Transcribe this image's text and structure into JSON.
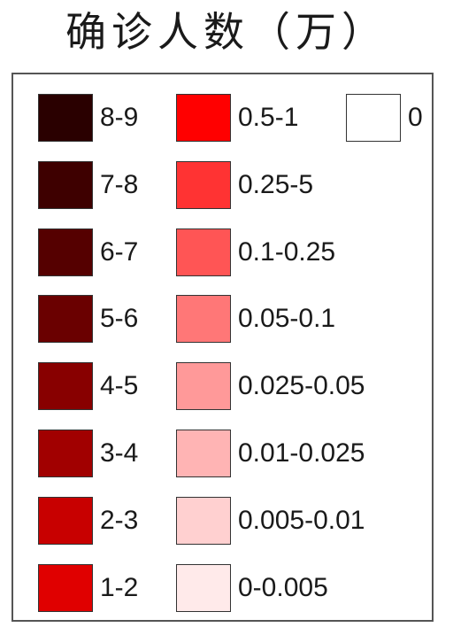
{
  "title": "确诊人数（万）",
  "legend": {
    "col1": [
      {
        "label": "8-9",
        "color": "#2a0000"
      },
      {
        "label": "7-8",
        "color": "#3e0000"
      },
      {
        "label": "6-7",
        "color": "#550000"
      },
      {
        "label": "5-6",
        "color": "#6a0000"
      },
      {
        "label": "4-5",
        "color": "#880000"
      },
      {
        "label": "3-4",
        "color": "#a10000"
      },
      {
        "label": "2-3",
        "color": "#c80000"
      },
      {
        "label": "1-2",
        "color": "#e00000"
      }
    ],
    "col2": [
      {
        "label": "0.5-1",
        "color": "#ff0000"
      },
      {
        "label": "0.25-5",
        "color": "#ff3333"
      },
      {
        "label": "0.1-0.25",
        "color": "#ff5555"
      },
      {
        "label": "0.05-0.1",
        "color": "#ff7777"
      },
      {
        "label": "0.025-0.05",
        "color": "#ff9999"
      },
      {
        "label": "0.01-0.025",
        "color": "#ffb4b4"
      },
      {
        "label": "0.005-0.01",
        "color": "#ffd0d0"
      },
      {
        "label": "0-0.005",
        "color": "#ffeaea"
      }
    ],
    "col3": [
      {
        "label": "0",
        "color": "#ffffff"
      }
    ]
  }
}
